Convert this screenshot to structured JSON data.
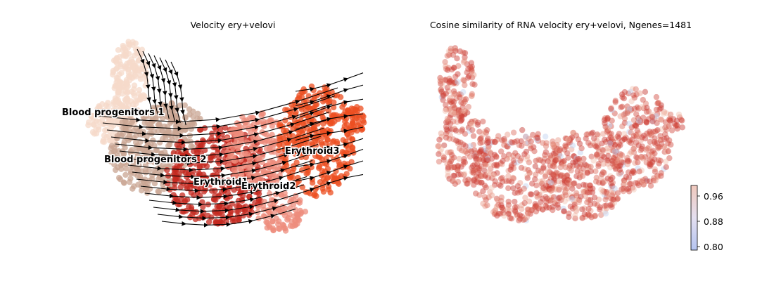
{
  "chart_data": [
    {
      "type": "scatter",
      "title": "Velocity ery+velovi",
      "xlabel": "",
      "ylabel": "",
      "overlay": "velocity streamlines",
      "clusters": [
        {
          "name": "Blood progenitors 1",
          "color": "#f6d9c9"
        },
        {
          "name": "Blood progenitors 2",
          "color": "#c9a593"
        },
        {
          "name": "Erythroid1",
          "color": "#c42a20"
        },
        {
          "name": "Erythroid2",
          "color": "#ee8c7c"
        },
        {
          "name": "Erythroid3",
          "color": "#ec4f22"
        }
      ]
    },
    {
      "type": "scatter",
      "title": "Cosine similarity of RNA velocity ery+velovi, Ngenes=1481",
      "xlabel": "",
      "ylabel": "",
      "colorbar": {
        "ticks": [
          "0.80",
          "0.88",
          "0.96"
        ],
        "range": [
          0.79,
          0.98
        ],
        "colors": [
          "#b4c4f0",
          "#e4dff0",
          "#f0c8bc"
        ]
      },
      "point_color_main": "#d0463c"
    }
  ]
}
